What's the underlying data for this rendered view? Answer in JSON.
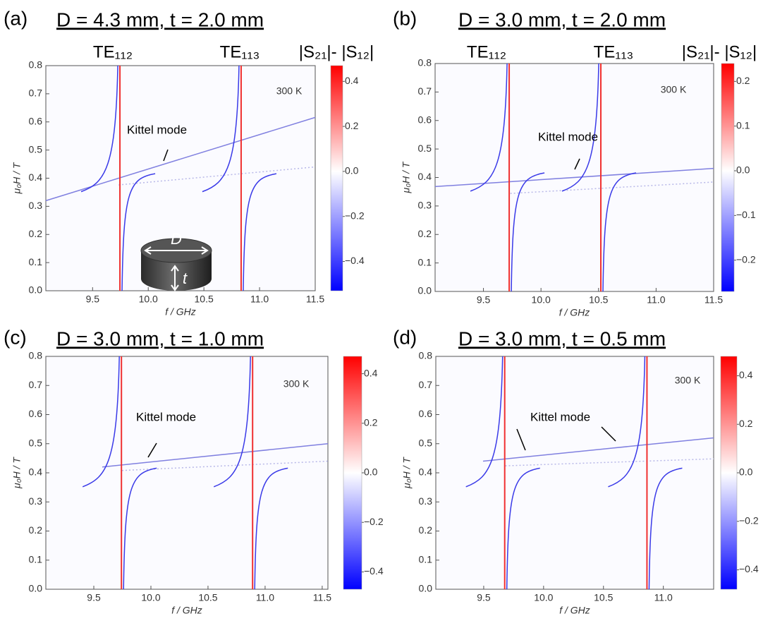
{
  "chart_data": [
    {
      "type": "heatmap",
      "panel_label": "(a)",
      "title": "D = 4.3 mm, t = 2.0 mm",
      "xlabel": "f / GHz",
      "ylabel": "μ₀H / T",
      "xlim": [
        9.08,
        11.5
      ],
      "xticks": [
        9.5,
        {
          "value": 10,
          "label": "10.0"
        },
        10.5,
        {
          "value": 11,
          "label": "11.0"
        },
        11.5
      ],
      "ylim": [
        0,
        0.8
      ],
      "yticks": [
        {
          "value": 0,
          "label": "0.0"
        },
        0.1,
        0.2,
        0.3,
        0.4,
        0.5,
        0.6,
        0.7,
        0.8
      ],
      "colorbar_label": "|S₂₁|- |S₁₂|",
      "clim": [
        -0.53,
        0.47
      ],
      "cticks": [
        {
          "value": -0.4,
          "label": "−0.4"
        },
        {
          "value": -0.2,
          "label": "−0.2"
        },
        {
          "value": 0,
          "label": "0.0"
        },
        0.2,
        0.4
      ],
      "colormap": [
        "#0000ff",
        "#ffffff",
        "#ff0000"
      ],
      "annotations": {
        "modes": [
          "TE₁₁₂",
          "TE₁₁₃"
        ],
        "temperature": "300 K",
        "kittel": "Kittel mode",
        "inset": [
          "D",
          "t"
        ]
      }
    },
    {
      "type": "heatmap",
      "panel_label": "(b)",
      "title": "D = 3.0 mm, t = 2.0 mm",
      "xlabel": "f / GHz",
      "ylabel": "μ₀H / T",
      "xlim": [
        9.08,
        11.5
      ],
      "xticks": [
        9.5,
        {
          "value": 10,
          "label": "10.0"
        },
        10.5,
        {
          "value": 11,
          "label": "11.0"
        },
        11.5
      ],
      "ylim": [
        0,
        0.8
      ],
      "yticks": [
        {
          "value": 0,
          "label": "0.0"
        },
        0.1,
        0.2,
        0.3,
        0.4,
        0.5,
        0.6,
        0.7,
        0.8
      ],
      "colorbar_label": "|S₂₁|- |S₁₂|",
      "clim": [
        -0.27,
        0.24
      ],
      "cticks": [
        {
          "value": -0.2,
          "label": "−0.2"
        },
        {
          "value": -0.1,
          "label": "−0.1"
        },
        {
          "value": 0,
          "label": "0.0"
        },
        0.1,
        0.2
      ],
      "colormap": [
        "#0000ff",
        "#ffffff",
        "#ff0000"
      ],
      "annotations": {
        "modes": [
          "TE₁₁₂",
          "TE₁₁₃"
        ],
        "temperature": "300 K",
        "kittel": "Kittel mode"
      }
    },
    {
      "type": "heatmap",
      "panel_label": "(c)",
      "title": "D = 3.0 mm, t = 1.0 mm",
      "xlabel": "f / GHz",
      "ylabel": "μ₀H / T",
      "xlim": [
        9.08,
        11.55
      ],
      "xticks": [
        9.5,
        {
          "value": 10,
          "label": "10.0"
        },
        10.5,
        {
          "value": 11,
          "label": "11.0"
        },
        11.5
      ],
      "ylim": [
        0,
        0.8
      ],
      "yticks": [
        {
          "value": 0,
          "label": "0.0"
        },
        0.1,
        0.2,
        0.3,
        0.4,
        0.5,
        0.6,
        0.7,
        0.8
      ],
      "clim": [
        -0.47,
        0.47
      ],
      "cticks": [
        {
          "value": -0.4,
          "label": "−0.4"
        },
        {
          "value": -0.2,
          "label": "−0.2"
        },
        {
          "value": 0,
          "label": "0.0"
        },
        0.2,
        0.4
      ],
      "colormap": [
        "#0000ff",
        "#ffffff",
        "#ff0000"
      ],
      "annotations": {
        "temperature": "300 K",
        "kittel": "Kittel mode"
      }
    },
    {
      "type": "heatmap",
      "panel_label": "(d)",
      "title": "D = 3.0 mm, t = 0.5 mm",
      "xlabel": "f / GHz",
      "ylabel": "μ₀H / T",
      "xlim": [
        9.1,
        11.42
      ],
      "xticks": [
        9.5,
        {
          "value": 10,
          "label": "10.0"
        },
        10.5,
        {
          "value": 11,
          "label": "11.0"
        }
      ],
      "ylim": [
        0,
        0.8
      ],
      "yticks": [
        {
          "value": 0,
          "label": "0.0"
        },
        0.1,
        0.2,
        0.3,
        0.4,
        0.5,
        0.6,
        0.7,
        0.8
      ],
      "clim": [
        -0.48,
        0.48
      ],
      "cticks": [
        {
          "value": -0.4,
          "label": "−0.4"
        },
        {
          "value": -0.2,
          "label": "−0.2"
        },
        {
          "value": 0,
          "label": "0.0"
        },
        0.2,
        0.4
      ],
      "colormap": [
        "#0000ff",
        "#ffffff",
        "#ff0000"
      ],
      "annotations": {
        "temperature": "300 K",
        "kittel": "Kittel mode"
      }
    }
  ]
}
